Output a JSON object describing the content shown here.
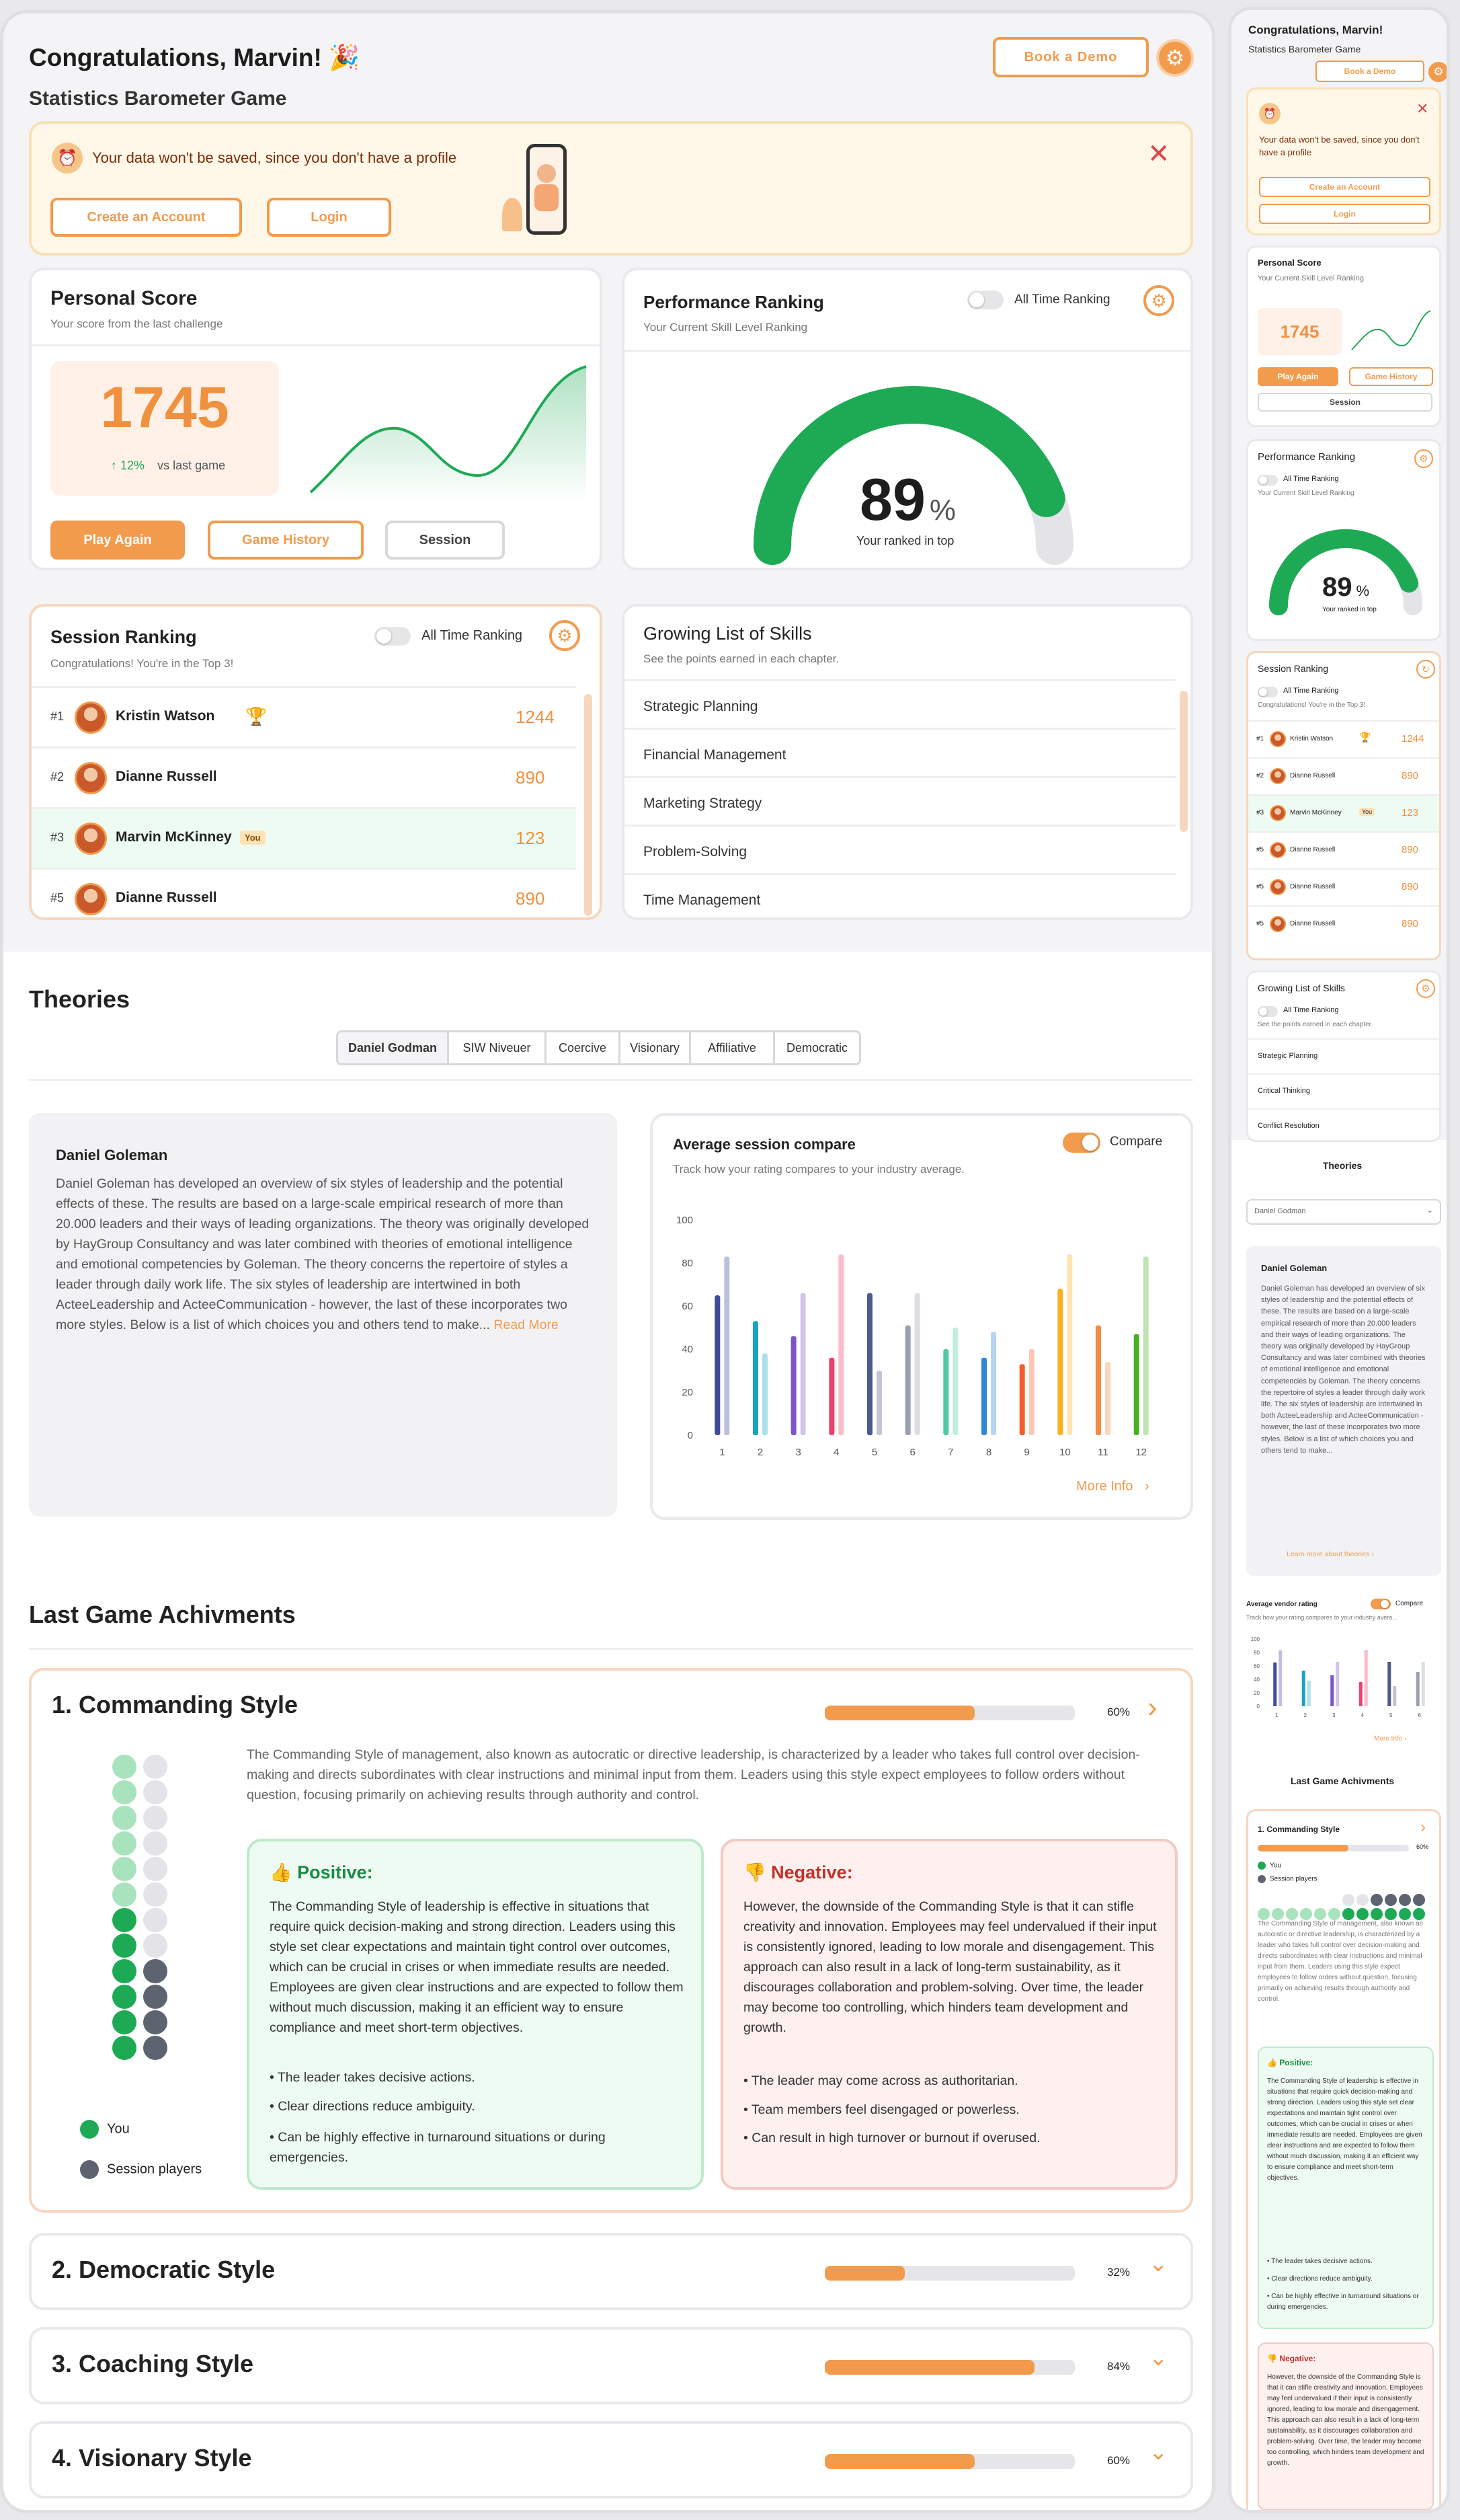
{
  "header": {
    "title": "Congratulations, Marvin!",
    "party_emoji": "🎉",
    "subtitle": "Statistics Barometer Game",
    "demo_button": "Book a Demo",
    "gear_icon": "gear-icon"
  },
  "notice": {
    "message": "Your data won't be saved, since you don't have a profile",
    "create_account": "Create an Account",
    "login": "Login",
    "close_icon": "close-icon"
  },
  "personal_score": {
    "title": "Personal Score",
    "subtitle": "Your score from the last challenge",
    "score": "1745",
    "change": "12%",
    "change_label": "vs last game",
    "play_again": "Play Again",
    "game_history": "Game History",
    "session": "Session"
  },
  "performance": {
    "title": "Performance Ranking",
    "subtitle": "Your Current Skill Level Ranking",
    "toggle_label": "All Time Ranking",
    "percent": 89,
    "value": "89",
    "unit": "%",
    "caption": "Your ranked in top"
  },
  "session_ranking": {
    "title": "Session Ranking",
    "subtitle": "Congratulations! You're in the Top 3!",
    "toggle_label": "All Time Ranking",
    "rows": [
      {
        "rank": "#1",
        "name": "Kristin Watson",
        "score": "1244",
        "trophy": true,
        "you": false
      },
      {
        "rank": "#2",
        "name": "Dianne Russell",
        "score": "890",
        "trophy": false,
        "you": false
      },
      {
        "rank": "#3",
        "name": "Marvin McKinney",
        "score": "123",
        "trophy": false,
        "you": true,
        "badge": "You"
      },
      {
        "rank": "#5",
        "name": "Dianne Russell",
        "score": "890",
        "trophy": false,
        "you": false
      }
    ]
  },
  "skills": {
    "title": "Growing List of Skills",
    "subtitle": "See the points earned in each chapter.",
    "items": [
      "Strategic Planning",
      "Financial Management",
      "Marketing Strategy",
      "Problem-Solving",
      "Time Management"
    ]
  },
  "theories": {
    "title": "Theories",
    "tabs": [
      "Daniel Godman",
      "SIW Niveuer",
      "Coercive",
      "Visionary",
      "Affiliative",
      "Democratic"
    ],
    "text_title": "Daniel Goleman",
    "text": "Daniel Goleman has developed an overview of six styles of leadership and the potential effects of these. The results are based on a large-scale empirical research of more than 20.000 leaders and their ways of leading organizations. The theory was originally developed by HayGroup Consultancy and was later combined with theories of emotional intelligence and emotional competencies by Goleman. The theory concerns the repertoire of styles a leader through daily work life. The six styles of leadership are intertwined in both ActeeLeadership and ActeeCommunication - however, the last of these incorporates two more styles. Below is a list of which choices you and others tend to make...",
    "read_more": "Read More"
  },
  "compare_chart": {
    "title": "Average session compare",
    "subtitle": "Track how your rating compares to your industry average.",
    "toggle_label": "Compare",
    "more_info": "More Info"
  },
  "chart_data": {
    "type": "bar",
    "categories": [
      "1",
      "2",
      "3",
      "4",
      "5",
      "6",
      "7",
      "8",
      "9",
      "10",
      "11",
      "12"
    ],
    "ylim": [
      0,
      100
    ],
    "yticks": [
      "0",
      "20",
      "40",
      "60",
      "80",
      "100"
    ],
    "series": [
      {
        "values": [
          65,
          53,
          46,
          36,
          66,
          51,
          40,
          36,
          33,
          68,
          51,
          47
        ]
      },
      {
        "values": [
          83,
          38,
          66,
          84,
          30,
          66,
          50,
          48,
          40,
          84,
          34,
          83
        ]
      }
    ],
    "colors": [
      "#3f4b9a",
      "#17a3c4",
      "#7b55c9",
      "#f0416a",
      "#4e5a8a",
      "#9aa0ad",
      "#4fc9a7",
      "#2f88d6",
      "#f45d2b",
      "#f8b125",
      "#f28a43",
      "#4caf22"
    ]
  },
  "achievements": {
    "title": "Last Game Achivments",
    "items": [
      {
        "title": "1. Commanding Style",
        "percent": 60,
        "percent_label": "60%"
      },
      {
        "title": "2. Democratic Style",
        "percent": 32,
        "percent_label": "32%"
      },
      {
        "title": "3. Coaching Style",
        "percent": 84,
        "percent_label": "84%"
      },
      {
        "title": "4. Visionary Style",
        "percent": 60,
        "percent_label": "60%"
      }
    ],
    "description": "The Commanding Style of management, also known as autocratic or directive leadership, is characterized by a leader who takes full control over decision-making and directs subordinates with clear instructions and minimal input from them. Leaders using this style expect employees to follow orders without question, focusing primarily on achieving results through authority and control.",
    "positive": {
      "title": "Positive:",
      "text": "The Commanding Style of leadership is effective in situations that require quick decision-making and strong direction. Leaders using this style set clear expectations and maintain tight control over outcomes, which can be crucial in crises or when immediate results are needed. Employees are given clear instructions and are expected to follow them without much discussion, making it an efficient way to ensure compliance and meet short-term objectives.",
      "bullets": [
        "• The leader takes decisive actions.",
        "• Clear directions reduce ambiguity.",
        "• Can be highly effective in turnaround situations or during emergencies."
      ]
    },
    "negative": {
      "title": "Negative:",
      "text": "However, the downside of the Commanding Style is that it can stifle creativity and innovation. Employees may feel undervalued if their input is consistently ignored, leading to low morale and disengagement. This approach can also result in a lack of long-term sustainability, as it discourages collaboration and problem-solving. Over time, the leader may become too controlling, which hinders team development and growth.",
      "bullets": [
        "• The leader may come across as authoritarian.",
        "• Team members feel disengaged or powerless.",
        "• Can result in high turnover or burnout if overused."
      ]
    },
    "legend_you": "You",
    "legend_session": "Session players"
  },
  "mobile": {
    "title": "Congratulations, Marvin!",
    "subtitle": "Statistics Barometer Game",
    "demo": "Book a Demo",
    "notice": "Your data won't be saved, since you don't have a profile",
    "create_account": "Create an Account",
    "login": "Login",
    "score_title": "Personal Score",
    "score_sub": "Your Current Skill Level Ranking",
    "score": "1745",
    "play_again": "Play Again",
    "game_history": "Game History",
    "session": "Session",
    "perf_title": "Performance Ranking",
    "perf_toggle": "All Time Ranking",
    "perf_sub": "Your Current Skill Level Ranking",
    "perf_value": "89",
    "perf_unit": "%",
    "perf_caption": "Your ranked in top",
    "sr_title": "Session Ranking",
    "sr_toggle": "All Time Ranking",
    "sr_sub": "Congratulations! You're in the Top 3!",
    "sr_rows": [
      {
        "rank": "#1",
        "name": "Kristin Watson",
        "score": "1244"
      },
      {
        "rank": "#2",
        "name": "Dianne Russell",
        "score": "890"
      },
      {
        "rank": "#3",
        "name": "Marvin McKinney",
        "score": "123",
        "badge": "You"
      },
      {
        "rank": "#5",
        "name": "Dianne Russell",
        "score": "890"
      },
      {
        "rank": "#5",
        "name": "Dianne Russell",
        "score": "890"
      },
      {
        "rank": "#5",
        "name": "Dianne Russell",
        "score": "890"
      }
    ],
    "skills_title": "Growing List of Skills",
    "skills_toggle": "All Time Ranking",
    "skills_sub": "See the points earned in each chapter.",
    "skills": [
      "Strategic Planning",
      "Critical Thinking",
      "Conflict Resolution"
    ],
    "theories_title": "Theories",
    "theories_select": "Daniel Godman",
    "theory_title": "Daniel Goleman",
    "theory_link": "Learn more about theories",
    "chart_title": "Average vendor rating",
    "chart_toggle": "Compare",
    "chart_sub": "Track how your rating compares to your industry avera...",
    "chart_more": "More Info",
    "chart_ticks": [
      "100",
      "80",
      "60",
      "40",
      "20",
      "0"
    ],
    "chart_x": [
      "1",
      "2",
      "3",
      "4",
      "5",
      "6"
    ],
    "ach_title": "Last Game Achivments",
    "ach_item": "1. Commanding Style",
    "ach_pct": "60%",
    "legend_you": "You",
    "legend_session": "Session players",
    "pos_title": "Positive:",
    "neg_title": "Negative:"
  }
}
